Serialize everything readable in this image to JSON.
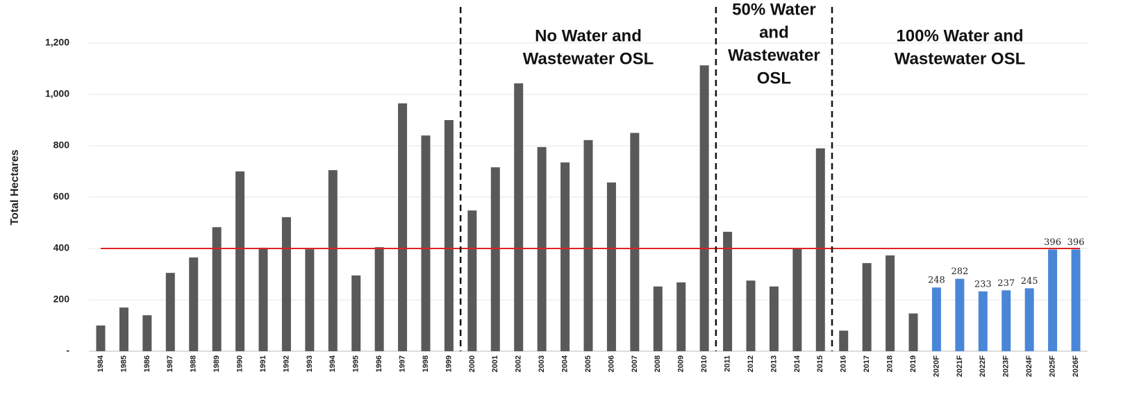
{
  "chart_data": {
    "type": "bar",
    "y_label": "Total Hectares",
    "categories": [
      "1984",
      "1985",
      "1986",
      "1987",
      "1988",
      "1989",
      "1990",
      "1991",
      "1992",
      "1993",
      "1994",
      "1995",
      "1996",
      "1997",
      "1998",
      "1999",
      "2000",
      "2001",
      "2002",
      "2003",
      "2004",
      "2005",
      "2006",
      "2007",
      "2008",
      "2009",
      "2010",
      "2011",
      "2012",
      "2013",
      "2014",
      "2015",
      "2016",
      "2017",
      "2018",
      "2019",
      "2020F",
      "2021F",
      "2022F",
      "2023F",
      "2024F",
      "2025F",
      "2026F"
    ],
    "values": [
      100,
      170,
      140,
      305,
      365,
      483,
      700,
      403,
      522,
      397,
      705,
      295,
      405,
      965,
      840,
      900,
      548,
      716,
      1043,
      795,
      735,
      822,
      657,
      850,
      252,
      268,
      1113,
      465,
      275,
      252,
      400,
      790,
      80,
      343,
      373,
      147,
      248,
      282,
      233,
      237,
      245,
      396,
      396
    ],
    "value_labels": [
      null,
      null,
      null,
      null,
      null,
      null,
      null,
      null,
      null,
      null,
      null,
      null,
      null,
      null,
      null,
      null,
      null,
      null,
      null,
      null,
      null,
      null,
      null,
      null,
      null,
      null,
      null,
      null,
      null,
      null,
      null,
      null,
      null,
      null,
      null,
      null,
      "248",
      "282",
      "233",
      "237",
      "245",
      "396",
      "396"
    ],
    "colors": [
      "#595959",
      "#595959",
      "#595959",
      "#595959",
      "#595959",
      "#595959",
      "#595959",
      "#595959",
      "#595959",
      "#595959",
      "#595959",
      "#595959",
      "#595959",
      "#595959",
      "#595959",
      "#595959",
      "#595959",
      "#595959",
      "#595959",
      "#595959",
      "#595959",
      "#595959",
      "#595959",
      "#595959",
      "#595959",
      "#595959",
      "#595959",
      "#595959",
      "#595959",
      "#595959",
      "#595959",
      "#595959",
      "#595959",
      "#595959",
      "#595959",
      "#595959",
      "#4a86d8",
      "#4a86d8",
      "#4a86d8",
      "#4a86d8",
      "#4a86d8",
      "#4a86d8",
      "#4a86d8"
    ],
    "ylim": [
      0,
      1200
    ],
    "yticks": [
      {
        "value": 0,
        "label": "-"
      },
      200,
      400,
      600,
      800,
      {
        "value": 1000,
        "label": "1,000"
      },
      {
        "value": 1200,
        "label": "1,200"
      }
    ],
    "grid": true,
    "reference_line": {
      "value": 400,
      "color": "#e02020"
    },
    "dividers_after": [
      "1999",
      "2010",
      "2015"
    ],
    "annotations": [
      {
        "lines": [
          "No Water and",
          "Wastewater OSL"
        ]
      },
      {
        "lines": [
          "50% Water",
          "and",
          "Wastewater",
          "OSL"
        ]
      },
      {
        "lines": [
          "100% Water and",
          "Wastewater OSL"
        ]
      }
    ]
  }
}
